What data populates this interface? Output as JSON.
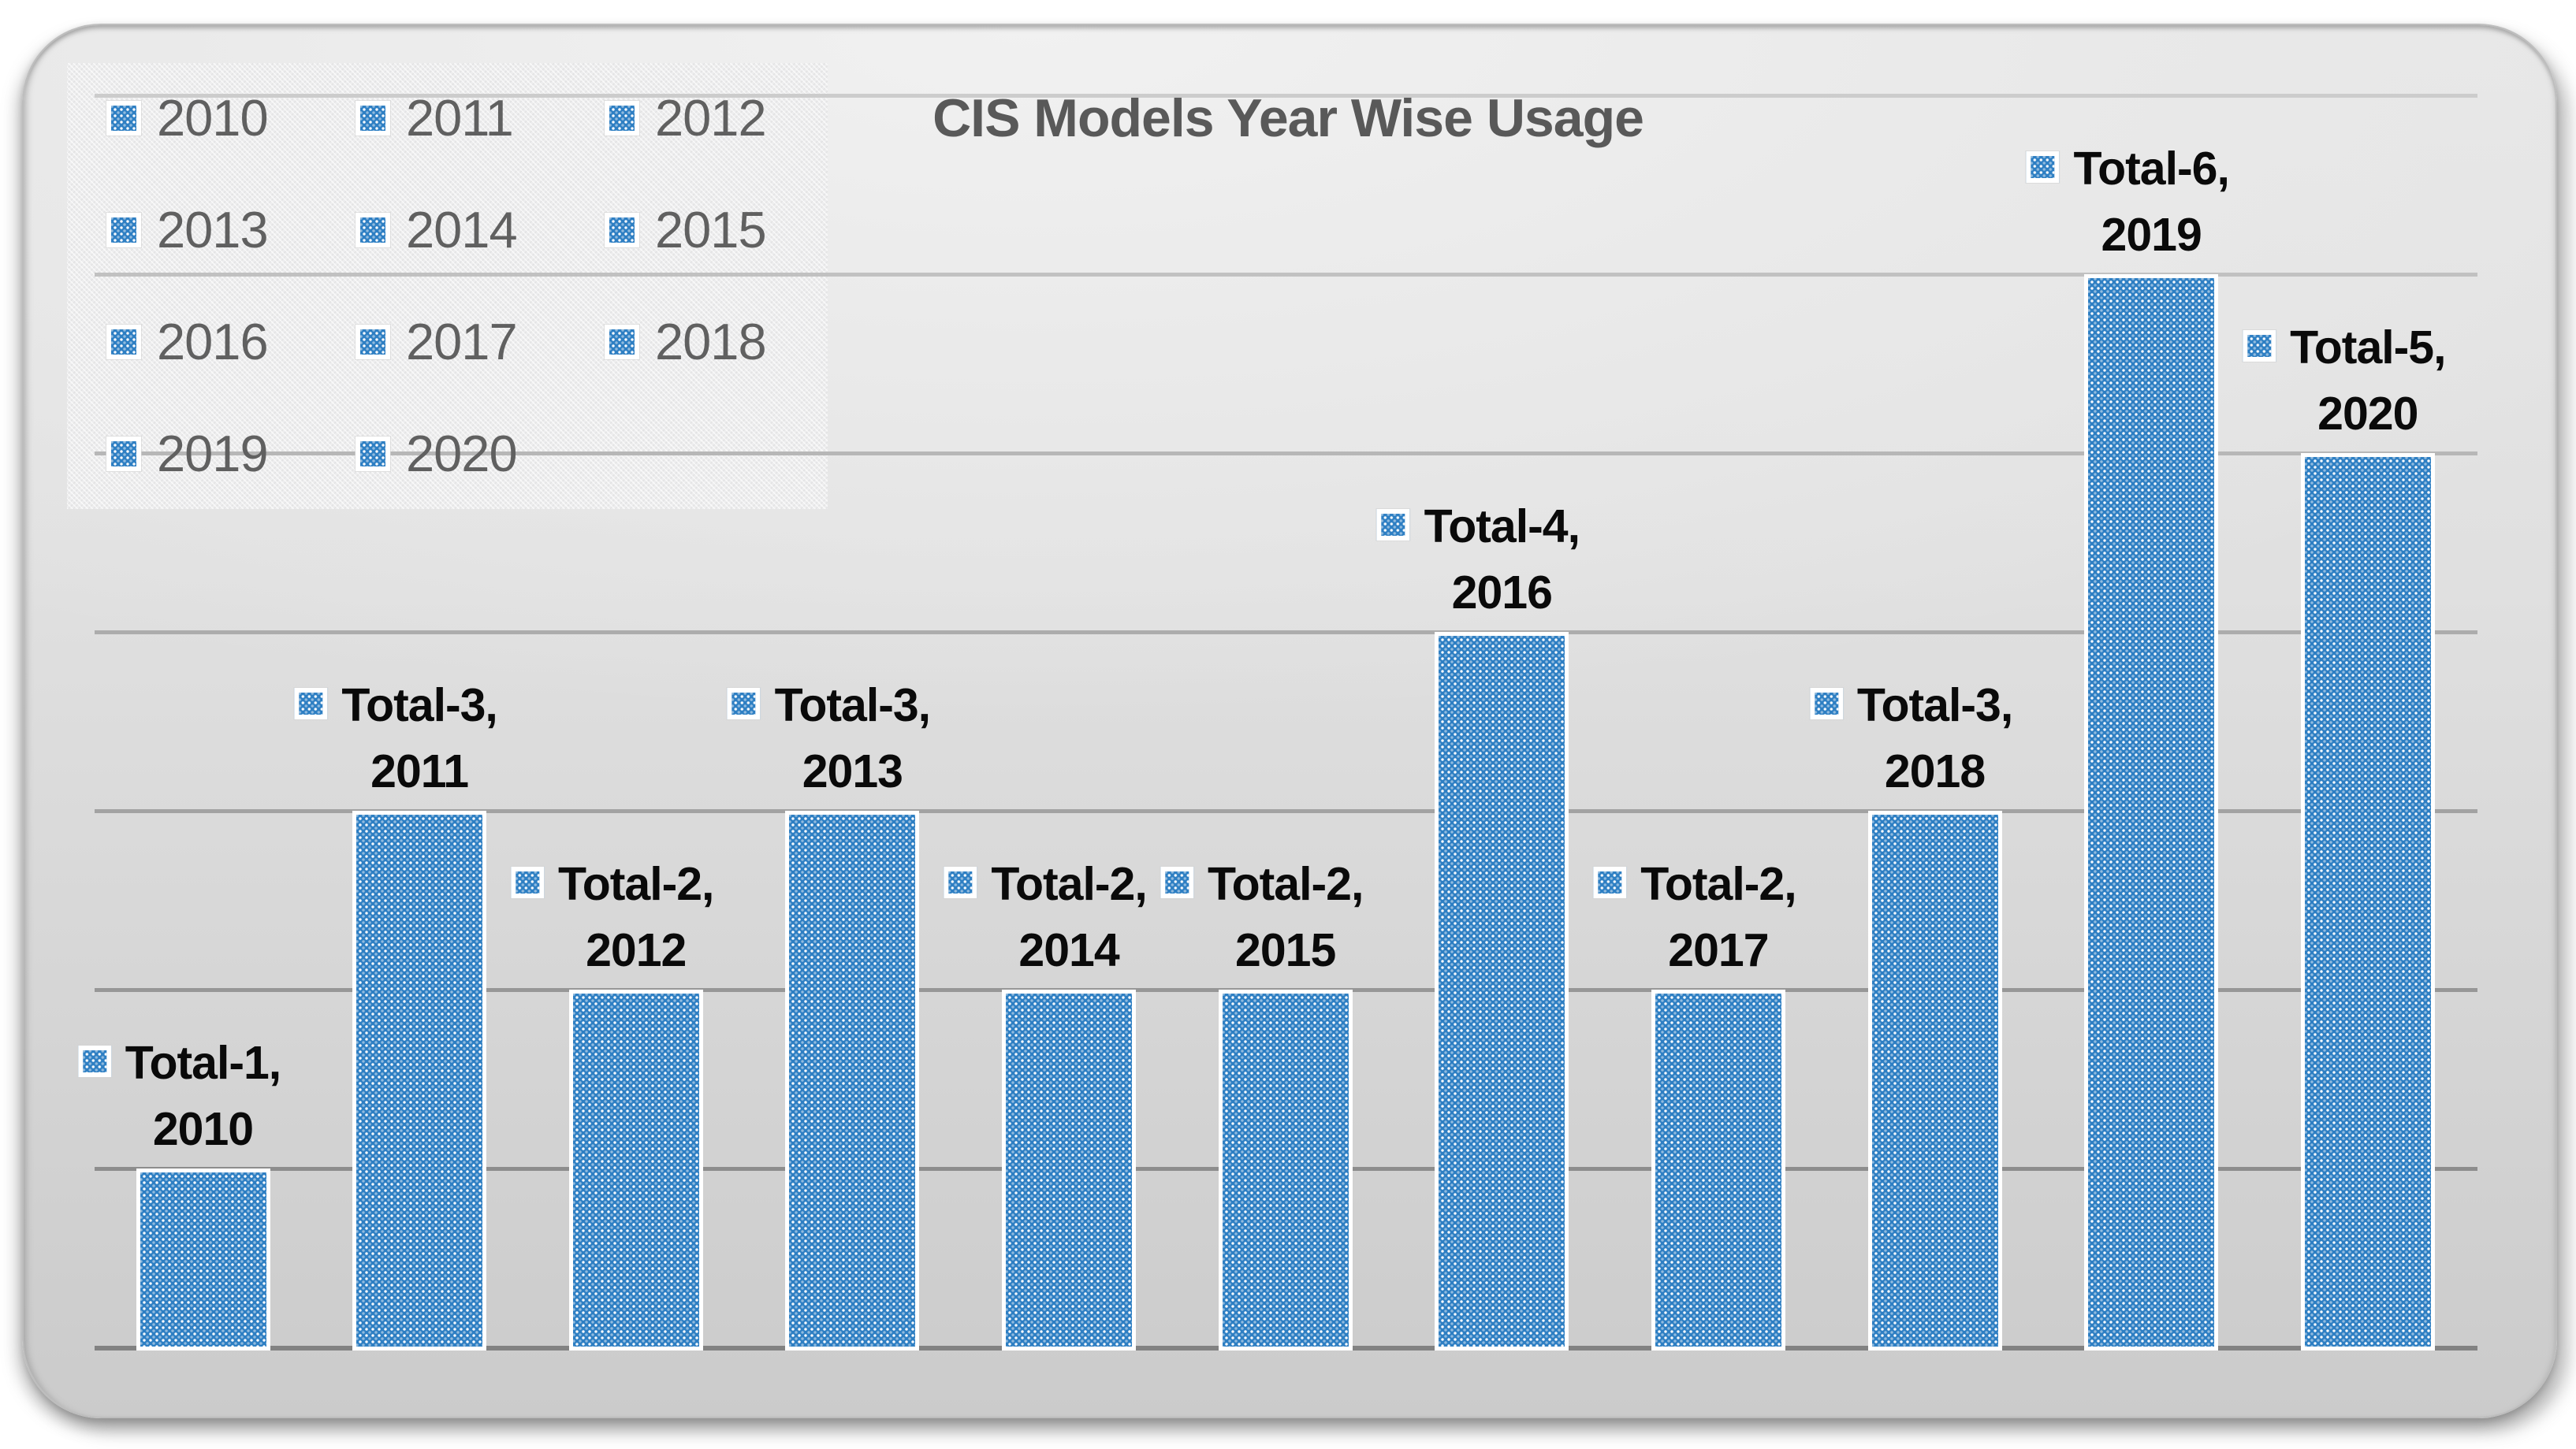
{
  "title": "CIS Models Year Wise Usage",
  "legend": {
    "position": "top-left",
    "columns": 3,
    "items": [
      "2010",
      "2011",
      "2012",
      "2013",
      "2014",
      "2015",
      "2016",
      "2017",
      "2018",
      "2019",
      "2020"
    ]
  },
  "chart_data": {
    "type": "bar",
    "title": "CIS Models Year Wise Usage",
    "categories": [
      "2010",
      "2011",
      "2012",
      "2013",
      "2014",
      "2015",
      "2016",
      "2017",
      "2018",
      "2019",
      "2020"
    ],
    "series": [
      {
        "name": "Total",
        "values": [
          1,
          3,
          2,
          3,
          2,
          2,
          4,
          2,
          3,
          6,
          5
        ]
      }
    ],
    "data_labels": [
      {
        "line1": "Total-1,",
        "line2": "2010"
      },
      {
        "line1": "Total-3,",
        "line2": "2011"
      },
      {
        "line1": "Total-2,",
        "line2": "2012"
      },
      {
        "line1": "Total-3,",
        "line2": "2013"
      },
      {
        "line1": "Total-2,",
        "line2": "2014"
      },
      {
        "line1": "Total-2,",
        "line2": "2015"
      },
      {
        "line1": "Total-4,",
        "line2": "2016"
      },
      {
        "line1": "Total-2,",
        "line2": "2017"
      },
      {
        "line1": "Total-3,",
        "line2": "2018"
      },
      {
        "line1": "Total-6,",
        "line2": "2019"
      },
      {
        "line1": "Total-5,",
        "line2": "2020"
      }
    ],
    "xlabel": "",
    "ylabel": "",
    "ylim": [
      0,
      7
    ],
    "gridlines": "horizontal, 1 unit apart, no axis tick labels shown",
    "legend_position": "top-left",
    "bar_pattern": "blue with white dotted texture, white outline"
  },
  "colors": {
    "bar_blue": "#2e7fc3",
    "title_text": "#595959",
    "legend_text": "#606060",
    "label_text": "#0a0a0a",
    "panel_top": "#ececec",
    "panel_bottom": "#cbcbcb",
    "gridline_dark": "#828282",
    "gridline_light": "#cdcdcd"
  }
}
